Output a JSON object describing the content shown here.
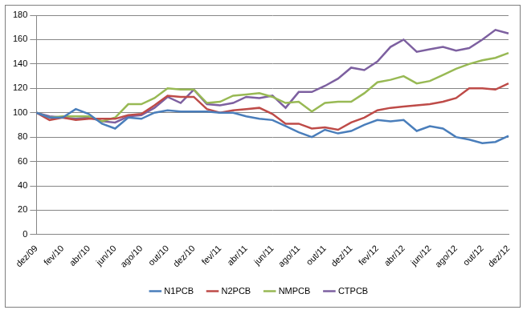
{
  "chart_data": {
    "type": "line",
    "categories": [
      "dez/09",
      null,
      "fev/10",
      null,
      "abr/10",
      null,
      "jun/10",
      null,
      "ago/10",
      null,
      "out/10",
      null,
      "dez/10",
      null,
      "fev/11",
      null,
      "abr/11",
      null,
      "jun/11",
      null,
      "ago/11",
      null,
      "out/11",
      null,
      "dez/11",
      null,
      "fev/12",
      null,
      "abr/12",
      null,
      "jun/12",
      null,
      "ago/12",
      null,
      "out/12",
      null,
      "dez/12"
    ],
    "series": [
      {
        "name": "N1PCB",
        "color": "#4a7ebb",
        "values": [
          100,
          96,
          96,
          103,
          99,
          91,
          87,
          96,
          95,
          100,
          102,
          101,
          101,
          101,
          100,
          100,
          97,
          95,
          94,
          89,
          84,
          80,
          86,
          83,
          85,
          90,
          94,
          93,
          94,
          85,
          89,
          87,
          80,
          78,
          75,
          76,
          81
        ]
      },
      {
        "name": "N2PCB",
        "color": "#be4b48",
        "values": [
          100,
          94,
          96,
          94,
          95,
          95,
          95,
          98,
          99,
          106,
          114,
          113,
          113,
          103,
          100,
          102,
          103,
          104,
          99,
          91,
          91,
          87,
          88,
          86,
          92,
          96,
          102,
          104,
          105,
          106,
          107,
          109,
          112,
          120,
          120,
          119,
          124
        ]
      },
      {
        "name": "NMPCB",
        "color": "#98b954",
        "values": [
          100,
          96,
          97,
          97,
          97,
          93,
          96,
          107,
          107,
          112,
          120,
          119,
          119,
          108,
          109,
          114,
          115,
          116,
          113,
          108,
          109,
          101,
          108,
          109,
          109,
          116,
          125,
          127,
          130,
          124,
          126,
          131,
          136,
          140,
          143,
          145,
          149
        ]
      },
      {
        "name": "CTPCB",
        "color": "#7d60a0",
        "values": [
          100,
          97,
          96,
          95,
          96,
          93,
          92,
          97,
          98,
          104,
          113,
          108,
          119,
          107,
          106,
          108,
          113,
          112,
          114,
          104,
          117,
          117,
          122,
          128,
          137,
          135,
          142,
          154,
          160,
          150,
          152,
          154,
          151,
          153,
          160,
          168,
          165
        ]
      }
    ],
    "ylim": [
      0,
      180
    ],
    "yticks": [
      0,
      20,
      40,
      60,
      80,
      100,
      120,
      140,
      160,
      180
    ],
    "grid": true,
    "legend": "bottom",
    "marker": "none"
  }
}
